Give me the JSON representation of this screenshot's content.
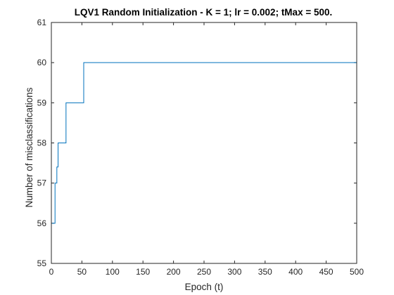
{
  "chart_data": {
    "type": "line",
    "title": "LQV1 Random Initialization - K = 1; lr = 0.002; tMax = 500.",
    "xlabel": "Epoch (t)",
    "ylabel": "Number of misclassifications",
    "xlim": [
      0,
      500
    ],
    "ylim": [
      55,
      61
    ],
    "xticks": [
      0,
      50,
      100,
      150,
      200,
      250,
      300,
      350,
      400,
      450,
      500
    ],
    "yticks": [
      55,
      56,
      57,
      58,
      59,
      60,
      61
    ],
    "grid": false,
    "line_color": "#0072BD",
    "step": true,
    "series": [
      {
        "x": [
          1,
          6,
          9,
          11,
          13,
          24,
          53,
          500
        ],
        "y": [
          56,
          57,
          57.4,
          58,
          58,
          59,
          60,
          60
        ]
      }
    ]
  }
}
